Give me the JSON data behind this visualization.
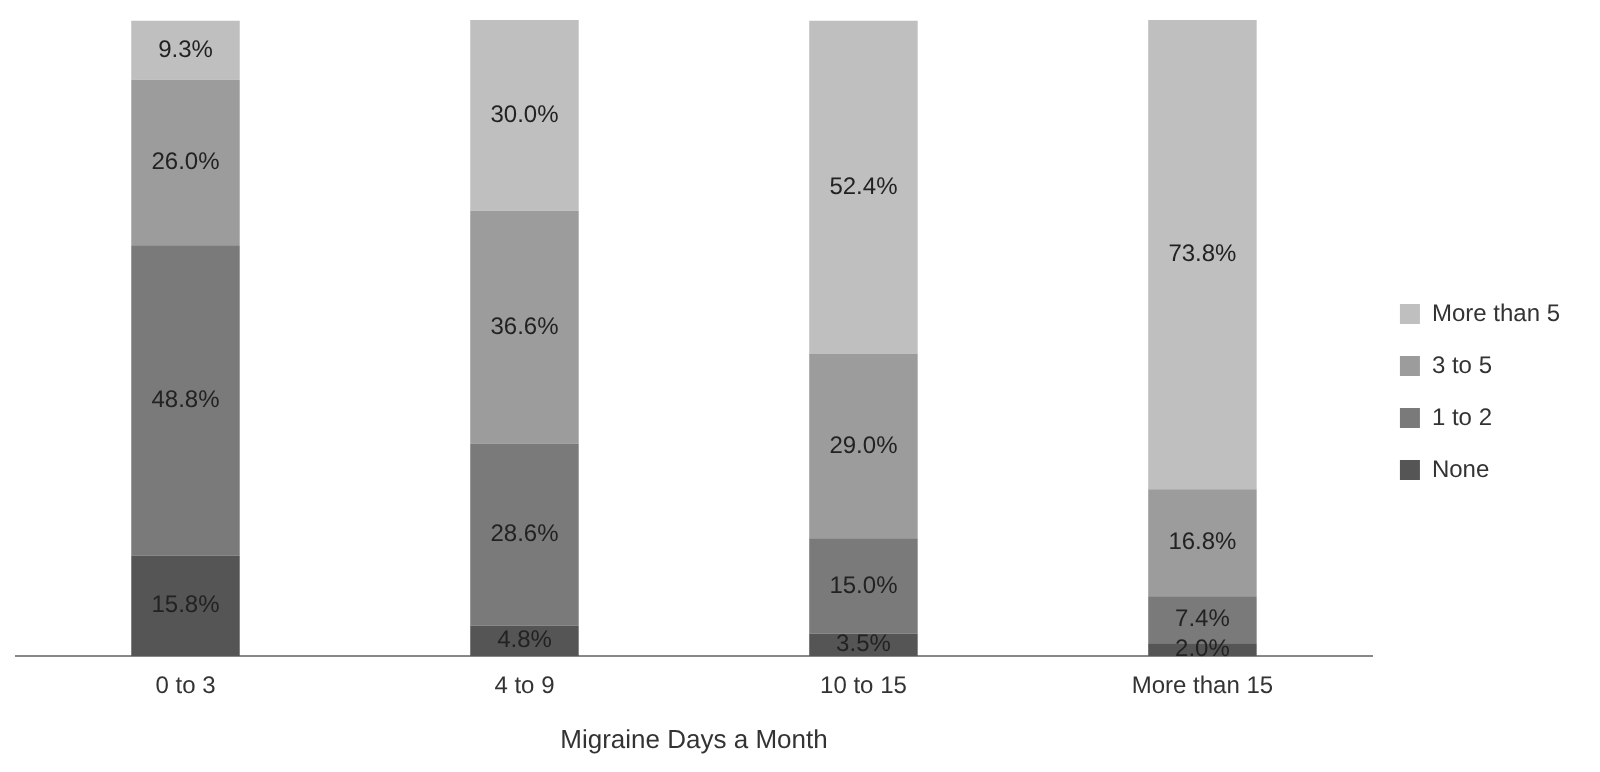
{
  "chart_data": {
    "type": "bar",
    "stacked": true,
    "xlabel": "Migraine Days a Month",
    "categories": [
      "0 to 3",
      "4 to 9",
      "10 to 15",
      "More than 15"
    ],
    "ylim": [
      0,
      100
    ],
    "grid": false,
    "legend": "right",
    "data_labels": true,
    "tick_labels": "x",
    "series": [
      {
        "name": "None",
        "color": "#555555",
        "values": [
          15.8,
          4.8,
          3.5,
          2.0
        ],
        "value_labels": [
          "15.8%",
          "4.8%",
          "3.5%",
          "2.0%"
        ]
      },
      {
        "name": "1 to 2",
        "color": "#7a7a7a",
        "values": [
          48.8,
          28.6,
          15.0,
          7.4
        ],
        "value_labels": [
          "48.8%",
          "28.6%",
          "15.0%",
          "7.4%"
        ]
      },
      {
        "name": "3 to 5",
        "color": "#9c9c9c",
        "values": [
          26.0,
          36.6,
          29.0,
          16.8
        ],
        "value_labels": [
          "26.0%",
          "36.6%",
          "29.0%",
          "16.8%"
        ]
      },
      {
        "name": "More than 5",
        "color": "#bfbfbf",
        "values": [
          9.3,
          30.0,
          52.4,
          73.8
        ],
        "value_labels": [
          "9.3%",
          "30.0%",
          "52.4%",
          "73.8%"
        ]
      }
    ]
  }
}
